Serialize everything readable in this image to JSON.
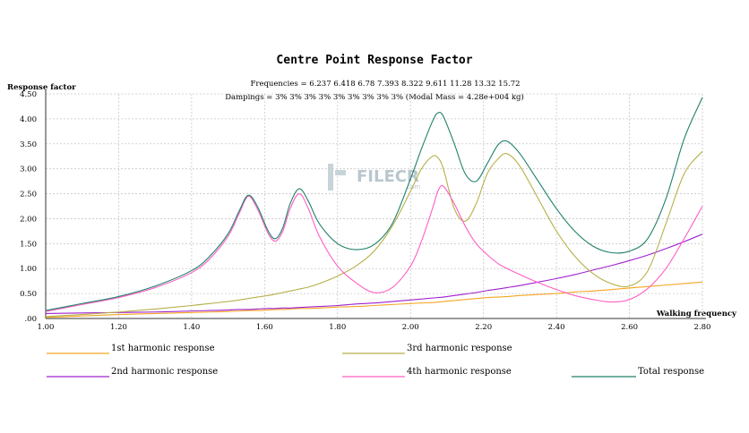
{
  "chart_data": {
    "type": "line",
    "title": "Centre Point Response Factor",
    "ylabel": "Response factor",
    "xlabel": "Walking frequency",
    "frequencies_label": "Frequencies = 6.237  6.418   6.78  7.393  8.322  9.611  11.28  13.32  15.72",
    "dampings_label": "Dampings =     3%     3%     3%     3%     3%     3%     3%     3%     3%  (Modal Mass = 4.28e+004  kg)",
    "xlim": [
      1.0,
      2.8
    ],
    "ylim": [
      0.0,
      4.5
    ],
    "x_ticks": [
      "1.00",
      "1.20",
      "1.40",
      "1.60",
      "1.80",
      "2.00",
      "2.20",
      "2.40",
      "2.60",
      "2.80"
    ],
    "y_ticks": [
      ".00",
      "0.50",
      "1.00",
      "1.50",
      "2.00",
      "2.50",
      "3.00",
      "3.50",
      "4.00",
      "4.50"
    ],
    "grid": true,
    "legend_placement": "bottom",
    "x": [
      1.0,
      1.1,
      1.2,
      1.3,
      1.4,
      1.45,
      1.5,
      1.53,
      1.555,
      1.58,
      1.61,
      1.63,
      1.65,
      1.67,
      1.695,
      1.72,
      1.75,
      1.8,
      1.85,
      1.9,
      1.95,
      2.0,
      2.03,
      2.06,
      2.075,
      2.09,
      2.12,
      2.15,
      2.18,
      2.21,
      2.24,
      2.265,
      2.3,
      2.35,
      2.4,
      2.45,
      2.5,
      2.55,
      2.6,
      2.65,
      2.7,
      2.75,
      2.8
    ],
    "series": [
      {
        "name": "1st harmonic response",
        "color": "#f5a623",
        "values": [
          0.02,
          0.05,
          0.08,
          0.1,
          0.12,
          0.13,
          0.14,
          0.15,
          0.16,
          0.16,
          0.17,
          0.18,
          0.18,
          0.19,
          0.2,
          0.2,
          0.21,
          0.23,
          0.24,
          0.26,
          0.28,
          0.3,
          0.31,
          0.32,
          0.33,
          0.34,
          0.36,
          0.38,
          0.4,
          0.42,
          0.43,
          0.44,
          0.46,
          0.48,
          0.5,
          0.53,
          0.55,
          0.58,
          0.61,
          0.64,
          0.67,
          0.7,
          0.73
        ]
      },
      {
        "name": "2nd harmonic response",
        "color": "#a020d0",
        "values": [
          0.1,
          0.11,
          0.12,
          0.13,
          0.15,
          0.16,
          0.17,
          0.18,
          0.18,
          0.19,
          0.2,
          0.2,
          0.21,
          0.21,
          0.22,
          0.23,
          0.24,
          0.26,
          0.29,
          0.31,
          0.34,
          0.37,
          0.39,
          0.41,
          0.42,
          0.43,
          0.46,
          0.49,
          0.52,
          0.56,
          0.59,
          0.62,
          0.66,
          0.73,
          0.8,
          0.88,
          0.97,
          1.06,
          1.16,
          1.27,
          1.4,
          1.54,
          1.69
        ]
      },
      {
        "name": "3rd harmonic response",
        "color": "#b5b04a",
        "values": [
          0.04,
          0.08,
          0.13,
          0.19,
          0.26,
          0.3,
          0.34,
          0.37,
          0.4,
          0.43,
          0.46,
          0.49,
          0.52,
          0.55,
          0.59,
          0.63,
          0.7,
          0.85,
          1.05,
          1.35,
          1.85,
          2.55,
          3.0,
          3.25,
          3.22,
          3.0,
          2.2,
          1.95,
          2.3,
          2.9,
          3.2,
          3.3,
          3.05,
          2.4,
          1.75,
          1.25,
          0.9,
          0.7,
          0.65,
          0.95,
          1.9,
          2.9,
          3.35
        ]
      },
      {
        "name": "4th harmonic response",
        "color": "#ff5ec4",
        "values": [
          0.14,
          0.28,
          0.42,
          0.62,
          0.92,
          1.2,
          1.65,
          2.1,
          2.45,
          2.2,
          1.7,
          1.55,
          1.75,
          2.2,
          2.5,
          2.2,
          1.65,
          1.05,
          0.72,
          0.52,
          0.62,
          1.05,
          1.55,
          2.2,
          2.55,
          2.65,
          2.3,
          1.85,
          1.5,
          1.28,
          1.1,
          1.0,
          0.88,
          0.72,
          0.58,
          0.46,
          0.38,
          0.33,
          0.38,
          0.6,
          1.0,
          1.6,
          2.25
        ]
      },
      {
        "name": "Total response",
        "color": "#20806a",
        "values": [
          0.16,
          0.3,
          0.44,
          0.65,
          0.96,
          1.25,
          1.7,
          2.15,
          2.47,
          2.25,
          1.75,
          1.6,
          1.82,
          2.3,
          2.6,
          2.35,
          1.9,
          1.5,
          1.38,
          1.48,
          1.9,
          2.8,
          3.4,
          3.95,
          4.12,
          4.05,
          3.5,
          2.9,
          2.75,
          3.1,
          3.48,
          3.55,
          3.3,
          2.75,
          2.2,
          1.75,
          1.45,
          1.32,
          1.35,
          1.6,
          2.4,
          3.6,
          4.43
        ]
      }
    ]
  },
  "watermark": {
    "brand": "FILECR",
    "suffix": ".com"
  }
}
